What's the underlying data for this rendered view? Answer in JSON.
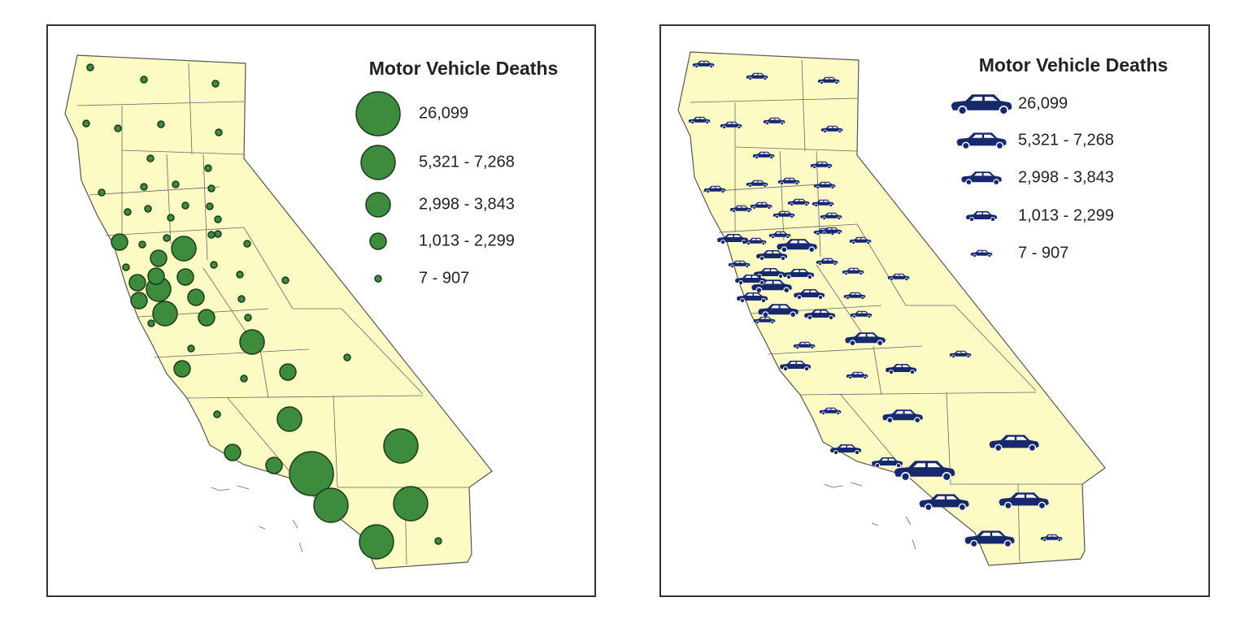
{
  "maps": [
    {
      "legend": {
        "title": "Motor Vehicle Deaths",
        "classes": [
          "26,099",
          "5,321 - 7,268",
          "2,998 - 3,843",
          "1,013 - 2,299",
          "7 - 907"
        ]
      }
    },
    {
      "legend": {
        "title": "Motor Vehicle Deaths",
        "classes": [
          "26,099",
          "5,321 - 7,268",
          "2,998 - 3,843",
          "1,013 - 2,299",
          "7 - 907"
        ]
      }
    }
  ]
}
